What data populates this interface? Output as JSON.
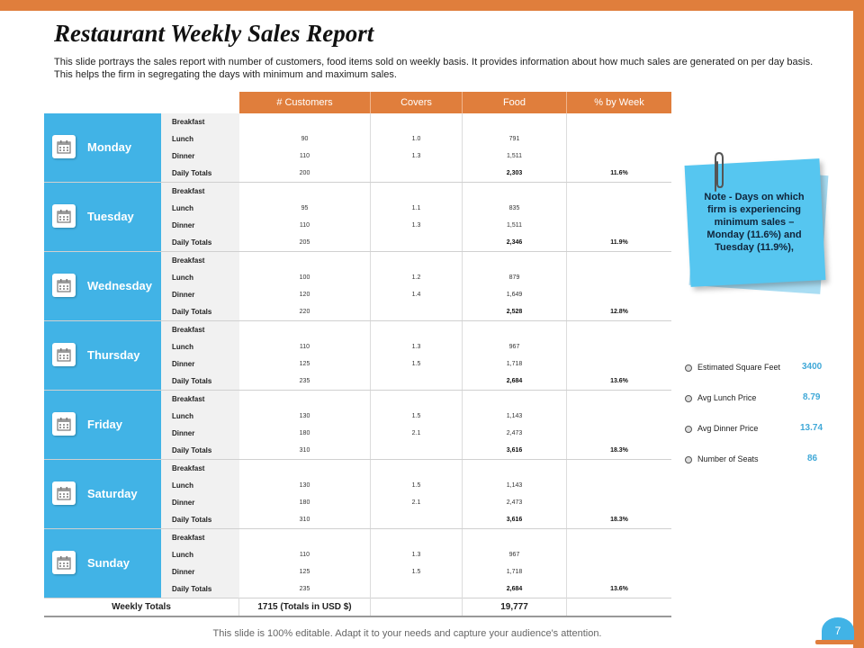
{
  "title": "Restaurant Weekly Sales Report",
  "subtitle": "This slide portrays the sales report with number of customers, food items sold on weekly basis. It provides information about how much sales are generated on per day basis. This helps the firm in segregating the days with minimum and maximum sales.",
  "table": {
    "headers": [
      "# Customers",
      "Covers",
      "Food",
      "% by Week"
    ],
    "meals": [
      "Breakfast",
      "Lunch",
      "Dinner",
      "Daily Totals"
    ],
    "days": [
      {
        "name": "Monday",
        "customers": [
          "",
          "90",
          "110",
          "200"
        ],
        "covers": [
          "",
          "1.0",
          "1.3",
          ""
        ],
        "food": [
          "",
          "791",
          "1,511",
          "2,303"
        ],
        "pct": [
          "",
          "",
          "",
          "11.6%"
        ]
      },
      {
        "name": "Tuesday",
        "customers": [
          "",
          "95",
          "110",
          "205"
        ],
        "covers": [
          "",
          "1.1",
          "1.3",
          ""
        ],
        "food": [
          "",
          "835",
          "1,511",
          "2,346"
        ],
        "pct": [
          "",
          "",
          "",
          "11.9%"
        ]
      },
      {
        "name": "Wednesday",
        "customers": [
          "",
          "100",
          "120",
          "220"
        ],
        "covers": [
          "",
          "1.2",
          "1.4",
          ""
        ],
        "food": [
          "",
          "879",
          "1,649",
          "2,528"
        ],
        "pct": [
          "",
          "",
          "",
          "12.8%"
        ]
      },
      {
        "name": "Thursday",
        "customers": [
          "",
          "110",
          "125",
          "235"
        ],
        "covers": [
          "",
          "1.3",
          "1.5",
          ""
        ],
        "food": [
          "",
          "967",
          "1,718",
          "2,684"
        ],
        "pct": [
          "",
          "",
          "",
          "13.6%"
        ]
      },
      {
        "name": "Friday",
        "customers": [
          "",
          "130",
          "180",
          "310"
        ],
        "covers": [
          "",
          "1.5",
          "2.1",
          ""
        ],
        "food": [
          "",
          "1,143",
          "2,473",
          "3,616"
        ],
        "pct": [
          "",
          "",
          "",
          "18.3%"
        ]
      },
      {
        "name": "Saturday",
        "customers": [
          "",
          "130",
          "180",
          "310"
        ],
        "covers": [
          "",
          "1.5",
          "2.1",
          ""
        ],
        "food": [
          "",
          "1,143",
          "2,473",
          "3,616"
        ],
        "pct": [
          "",
          "",
          "",
          "18.3%"
        ]
      },
      {
        "name": "Sunday",
        "customers": [
          "",
          "110",
          "125",
          "235"
        ],
        "covers": [
          "",
          "1.3",
          "1.5",
          ""
        ],
        "food": [
          "",
          "967",
          "1,718",
          "2,684"
        ],
        "pct": [
          "",
          "",
          "",
          "13.6%"
        ]
      }
    ],
    "totals": {
      "label": "Weekly Totals",
      "customers": "1715 (Totals in USD $)",
      "covers": "",
      "food": "19,777",
      "pct": ""
    }
  },
  "note": {
    "text": "Note - Days on which firm is experiencing minimum sales – Monday (11.6%) and Tuesday (11.9%),"
  },
  "stats": [
    {
      "label": "Estimated Square Feet",
      "value": "3400"
    },
    {
      "label": "Avg Lunch Price",
      "value": "8.79"
    },
    {
      "label": "Avg Dinner Price",
      "value": "13.74"
    },
    {
      "label": "Number of Seats",
      "value": "86"
    }
  ],
  "footer": "This slide is 100% editable. Adapt it to your needs and capture your audience's attention.",
  "page_number": "7",
  "colors": {
    "accent_orange": "#e07e3c",
    "accent_blue": "#41b3e6"
  }
}
